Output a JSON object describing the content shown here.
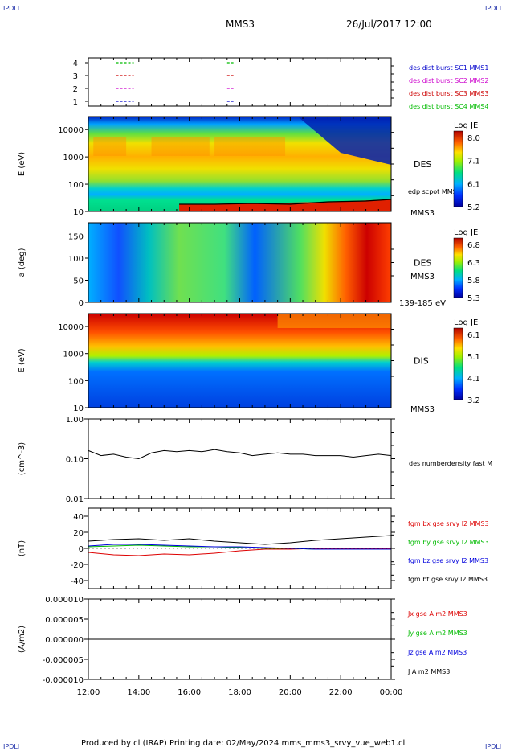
{
  "corner_label": "IPDLI",
  "header": {
    "spacecraft": "MMS3",
    "datetime": "26/Jul/2017 12:00"
  },
  "footer": {
    "text": "Produced by cl (IRAP)   Printing date: 02/May/2024   mms_mms3_srvy_vue_web1.cl"
  },
  "time_axis": {
    "ticks": [
      "12:00",
      "14:00",
      "16:00",
      "18:00",
      "20:00",
      "22:00",
      "00:00"
    ]
  },
  "chart_data": [
    {
      "type": "scatter",
      "yticks": [
        "4",
        "3",
        "2",
        "1"
      ],
      "legend": [
        {
          "label": "des dist burst SC1 MMS1",
          "color": "#0000cc"
        },
        {
          "label": "des dist burst SC2 MMS2",
          "color": "#cc00cc"
        },
        {
          "label": "des dist burst SC3 MMS3",
          "color": "#cc0000"
        },
        {
          "label": "des dist burst SC4 MMS4",
          "color": "#00bb00"
        }
      ],
      "segments": [
        {
          "level": 4,
          "x": [
            13.1,
            13.8
          ],
          "color": "#00bb00"
        },
        {
          "level": 3,
          "x": [
            13.1,
            13.8
          ],
          "color": "#cc0000"
        },
        {
          "level": 2,
          "x": [
            13.1,
            13.8
          ],
          "color": "#cc00cc"
        },
        {
          "level": 1,
          "x": [
            13.1,
            13.8
          ],
          "color": "#0000cc"
        },
        {
          "level": 4,
          "x": [
            17.5,
            17.75
          ],
          "color": "#00bb00"
        },
        {
          "level": 3,
          "x": [
            17.5,
            17.75
          ],
          "color": "#cc0000"
        },
        {
          "level": 2,
          "x": [
            17.5,
            17.75
          ],
          "color": "#cc00cc"
        },
        {
          "level": 1,
          "x": [
            17.5,
            17.75
          ],
          "color": "#0000cc"
        }
      ]
    },
    {
      "type": "heatmap",
      "ylabel": "E (eV)",
      "yscale": "log",
      "ylim": [
        10,
        30000
      ],
      "yticks": [
        "10000",
        "1000",
        "100",
        "10"
      ],
      "right_label": "DES",
      "overlay_label": "edp scpot MMS3",
      "instrument": "MMS3",
      "colorbar": {
        "title": "Log JE",
        "ticks": [
          "8.0",
          "7.1",
          "6.1",
          "5.2"
        ]
      }
    },
    {
      "type": "heatmap",
      "ylabel": "a (deg)",
      "ylim": [
        0,
        180
      ],
      "yticks": [
        "150",
        "100",
        "50",
        "0"
      ],
      "right_label": "DES",
      "instrument": "MMS3",
      "energy_range": "139-185 eV",
      "colorbar": {
        "title": "Log JE",
        "ticks": [
          "6.8",
          "6.3",
          "5.8",
          "5.3"
        ]
      }
    },
    {
      "type": "heatmap",
      "ylabel": "E (eV)",
      "yscale": "log",
      "ylim": [
        10,
        30000
      ],
      "yticks": [
        "10000",
        "1000",
        "100",
        "10"
      ],
      "right_label": "DIS",
      "instrument": "MMS3",
      "colorbar": {
        "title": "Log JE",
        "ticks": [
          "6.1",
          "5.1",
          "4.1",
          "3.2"
        ]
      }
    },
    {
      "type": "line",
      "ylabel": "(cm^-3)",
      "yscale": "log",
      "ylim": [
        0.01,
        1.0
      ],
      "yticks": [
        "1.00",
        "0.10",
        "0.01"
      ],
      "series": [
        {
          "name": "des numberdensity fast M",
          "color": "#000000",
          "x": [
            12.0,
            12.5,
            13.0,
            13.5,
            14.0,
            14.5,
            15.0,
            15.5,
            16.0,
            16.5,
            17.0,
            17.5,
            18.0,
            18.5,
            19.0,
            19.5,
            20.0,
            20.5,
            21.0,
            21.5,
            22.0,
            22.5,
            23.0,
            23.5,
            24.0
          ],
          "y": [
            0.16,
            0.12,
            0.13,
            0.11,
            0.1,
            0.14,
            0.16,
            0.15,
            0.16,
            0.15,
            0.17,
            0.15,
            0.14,
            0.12,
            0.13,
            0.14,
            0.13,
            0.13,
            0.12,
            0.12,
            0.12,
            0.11,
            0.12,
            0.13,
            0.12
          ]
        }
      ]
    },
    {
      "type": "line",
      "ylabel": "(nT)",
      "ylim": [
        -50,
        50
      ],
      "yticks": [
        "40",
        "20",
        "0",
        "-20",
        "-40"
      ],
      "series": [
        {
          "name": "fgm bx gse srvy l2 MMS3",
          "color": "#dd0000",
          "x": [
            12,
            13,
            14,
            15,
            16,
            17,
            18,
            19,
            20,
            21,
            22,
            23,
            24
          ],
          "y": [
            -5,
            -8,
            -9,
            -7,
            -8,
            -6,
            -3,
            -1,
            -1,
            0,
            0,
            0,
            0
          ]
        },
        {
          "name": "fgm by gse srvy l2 MMS3",
          "color": "#00bb00",
          "x": [
            12,
            13,
            14,
            15,
            16,
            17,
            18,
            19,
            20,
            21,
            22,
            23,
            24
          ],
          "y": [
            2,
            3,
            4,
            3,
            2,
            2,
            1,
            0,
            0,
            -1,
            -1,
            -1,
            -1
          ]
        },
        {
          "name": "fgm bz gse srvy l2 MMS3",
          "color": "#0000dd",
          "x": [
            12,
            13,
            14,
            15,
            16,
            17,
            18,
            19,
            20,
            21,
            22,
            23,
            24
          ],
          "y": [
            3,
            5,
            5,
            4,
            3,
            2,
            2,
            1,
            0,
            -1,
            -1,
            -1,
            -1
          ]
        },
        {
          "name": "fgm bt gse srvy l2 MMS3",
          "color": "#000000",
          "x": [
            12,
            13,
            14,
            15,
            16,
            17,
            18,
            19,
            20,
            21,
            22,
            23,
            24
          ],
          "y": [
            9,
            11,
            12,
            10,
            12,
            9,
            7,
            5,
            7,
            10,
            12,
            14,
            16
          ]
        }
      ]
    },
    {
      "type": "line",
      "ylabel": "(A/m2)",
      "ylim": [
        -1e-05,
        1e-05
      ],
      "yticks": [
        "0.000010",
        "0.000005",
        "0.000000",
        "-0.000005",
        "-0.000010"
      ],
      "series": [
        {
          "name": "Jx gse A m2 MMS3",
          "color": "#dd0000",
          "x": [
            12,
            24
          ],
          "y": [
            0,
            0
          ]
        },
        {
          "name": "Jy gse A m2 MMS3",
          "color": "#00bb00",
          "x": [
            12,
            24
          ],
          "y": [
            0,
            0
          ]
        },
        {
          "name": "Jz gse A m2 MMS3",
          "color": "#0000dd",
          "x": [
            12,
            24
          ],
          "y": [
            0,
            0
          ]
        },
        {
          "name": "J A m2 MMS3",
          "color": "#000000",
          "x": [
            12,
            24
          ],
          "y": [
            0,
            0
          ]
        }
      ]
    }
  ]
}
